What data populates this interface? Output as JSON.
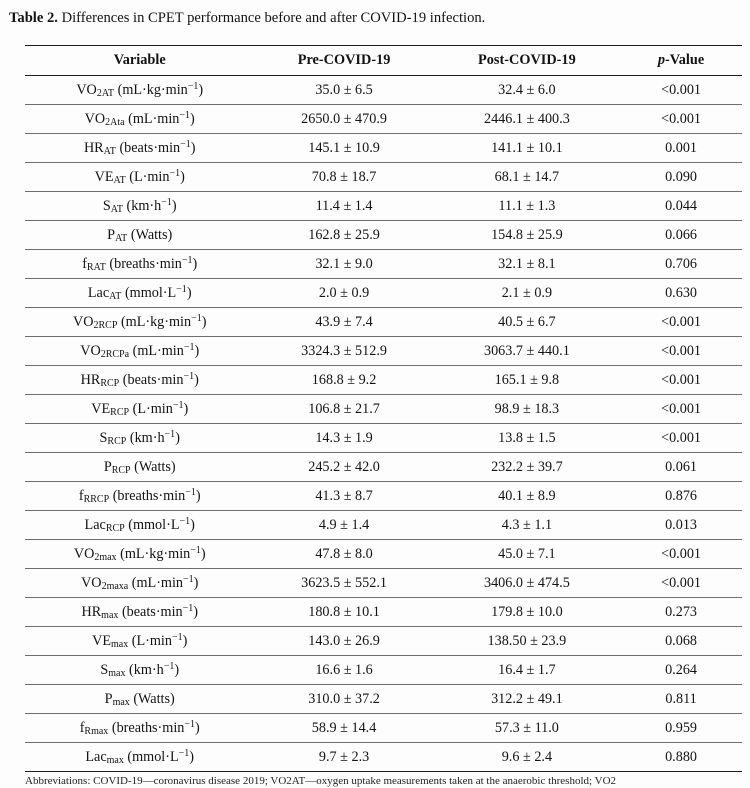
{
  "caption": {
    "label": "Table 2.",
    "text": " Differences in CPET performance before and after COVID-19 infection."
  },
  "table": {
    "headers": {
      "variable": "Variable",
      "pre": "Pre-COVID-19",
      "post": "Post-COVID-19",
      "p_italic": "p",
      "p_rest": "-Value"
    },
    "rows": [
      {
        "var_base": "VO",
        "var_sub": "2AT",
        "unit": "mL·kg·min",
        "unit_sup": "−1",
        "pre": "35.0 ± 6.5",
        "post": "32.4 ± 6.0",
        "p": "<0.001"
      },
      {
        "var_base": "VO",
        "var_sub": "2Ata",
        "unit": "mL·min",
        "unit_sup": "−1",
        "pre": "2650.0 ± 470.9",
        "post": "2446.1 ± 400.3",
        "p": "<0.001"
      },
      {
        "var_base": "HR",
        "var_sub": "AT",
        "unit": "beats·min",
        "unit_sup": "−1",
        "pre": "145.1 ± 10.9",
        "post": "141.1 ± 10.1",
        "p": "0.001"
      },
      {
        "var_base": "VE",
        "var_sub": "AT",
        "unit": "L·min",
        "unit_sup": "−1",
        "pre": "70.8 ± 18.7",
        "post": "68.1 ± 14.7",
        "p": "0.090"
      },
      {
        "var_base": "S",
        "var_sub": "AT",
        "unit": "km·h",
        "unit_sup": "−1",
        "pre": "11.4 ± 1.4",
        "post": "11.1 ± 1.3",
        "p": "0.044"
      },
      {
        "var_base": "P",
        "var_sub": "AT",
        "unit": "Watts",
        "unit_sup": null,
        "pre": "162.8 ± 25.9",
        "post": "154.8 ± 25.9",
        "p": "0.066"
      },
      {
        "var_base": "f",
        "var_sub": "RAT",
        "unit": "breaths·min",
        "unit_sup": "−1",
        "pre": "32.1 ± 9.0",
        "post": "32.1 ± 8.1",
        "p": "0.706"
      },
      {
        "var_base": "Lac",
        "var_sub": "AT",
        "unit": "mmol·L",
        "unit_sup": "−1",
        "pre": "2.0 ± 0.9",
        "post": "2.1 ± 0.9",
        "p": "0.630"
      },
      {
        "var_base": "VO",
        "var_sub": "2RCP",
        "unit": "mL·kg·min",
        "unit_sup": "−1",
        "pre": "43.9 ± 7.4",
        "post": "40.5 ± 6.7",
        "p": "<0.001"
      },
      {
        "var_base": "VO",
        "var_sub": "2RCPa",
        "unit": "mL·min",
        "unit_sup": "−1",
        "pre": "3324.3 ± 512.9",
        "post": "3063.7 ± 440.1",
        "p": "<0.001"
      },
      {
        "var_base": "HR",
        "var_sub": "RCP",
        "unit": "beats·min",
        "unit_sup": "−1",
        "pre": "168.8 ± 9.2",
        "post": "165.1 ± 9.8",
        "p": "<0.001"
      },
      {
        "var_base": "VE",
        "var_sub": "RCP",
        "unit": "L·min",
        "unit_sup": "−1",
        "pre": "106.8 ± 21.7",
        "post": "98.9 ± 18.3",
        "p": "<0.001"
      },
      {
        "var_base": "S",
        "var_sub": "RCP",
        "unit": "km·h",
        "unit_sup": "−1",
        "pre": "14.3 ± 1.9",
        "post": "13.8 ± 1.5",
        "p": "<0.001"
      },
      {
        "var_base": "P",
        "var_sub": "RCP",
        "unit": "Watts",
        "unit_sup": null,
        "pre": "245.2 ± 42.0",
        "post": "232.2 ± 39.7",
        "p": "0.061"
      },
      {
        "var_base": "f",
        "var_sub": "RRCP",
        "unit": "breaths·min",
        "unit_sup": "−1",
        "pre": "41.3 ± 8.7",
        "post": "40.1 ± 8.9",
        "p": "0.876"
      },
      {
        "var_base": "Lac",
        "var_sub": "RCP",
        "unit": "mmol·L",
        "unit_sup": "−1",
        "pre": "4.9 ± 1.4",
        "post": "4.3 ± 1.1",
        "p": "0.013"
      },
      {
        "var_base": "VO",
        "var_sub": "2max",
        "unit": "mL·kg·min",
        "unit_sup": "−1",
        "pre": "47.8 ± 8.0",
        "post": "45.0 ± 7.1",
        "p": "<0.001"
      },
      {
        "var_base": "VO",
        "var_sub": "2maxa",
        "unit": "mL·min",
        "unit_sup": "−1",
        "pre": "3623.5 ± 552.1",
        "post": "3406.0 ± 474.5",
        "p": "<0.001"
      },
      {
        "var_base": "HR",
        "var_sub": "max",
        "unit": "beats·min",
        "unit_sup": "−1",
        "pre": "180.8 ± 10.1",
        "post": "179.8 ± 10.0",
        "p": "0.273"
      },
      {
        "var_base": "VE",
        "var_sub": "max",
        "unit": "L·min",
        "unit_sup": "−1",
        "pre": "143.0 ± 26.9",
        "post": "138.50 ± 23.9",
        "p": "0.068"
      },
      {
        "var_base": "S",
        "var_sub": "max",
        "unit": "km·h",
        "unit_sup": "−1",
        "pre": "16.6 ± 1.6",
        "post": "16.4 ± 1.7",
        "p": "0.264"
      },
      {
        "var_base": "P",
        "var_sub": "max",
        "unit": "Watts",
        "unit_sup": null,
        "pre": "310.0 ± 37.2",
        "post": "312.2 ± 49.1",
        "p": "0.811"
      },
      {
        "var_base": "f",
        "var_sub": "Rmax",
        "unit": "breaths·min",
        "unit_sup": "−1",
        "pre": "58.9 ± 14.4",
        "post": "57.3 ± 11.0",
        "p": "0.959"
      },
      {
        "var_base": "Lac",
        "var_sub": "max",
        "unit": "mmol·L",
        "unit_sup": "−1",
        "pre": "9.7 ± 2.3",
        "post": "9.6 ± 2.4",
        "p": "0.880"
      }
    ],
    "footnote_partial": "Abbreviations: COVID-19—coronavirus disease 2019; VO2AT—oxygen uptake measurements taken at the anaerobic threshold; VO2"
  }
}
